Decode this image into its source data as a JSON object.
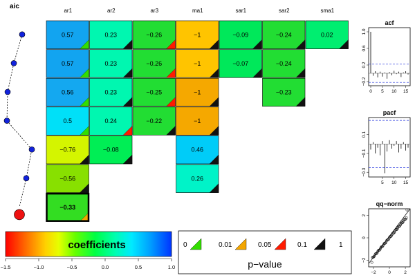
{
  "aic_panel": {
    "title": "aic"
  },
  "chart_data": {
    "type": "heatmap",
    "columns": [
      "ar1",
      "ar2",
      "ar3",
      "ma1",
      "sar1",
      "sar2",
      "sma1"
    ],
    "rows": [
      {
        "aic_rank": 4,
        "cells": [
          {
            "col": "ar1",
            "value": "0.57",
            "fill": "#12a4f0",
            "tri": "#33dd00"
          },
          {
            "col": "ar2",
            "value": "0.23",
            "fill": "#00f7b0",
            "tri": "#111111"
          },
          {
            "col": "ar3",
            "value": "−0.26",
            "fill": "#22dd33",
            "tri": "#ff1a00"
          },
          {
            "col": "ma1",
            "value": "−1",
            "fill": "#ffc400",
            "tri": "#111111"
          },
          {
            "col": "sar1",
            "value": "−0.09",
            "fill": "#00e85a",
            "tri": "#111111"
          },
          {
            "col": "sar2",
            "value": "−0.24",
            "fill": "#22dd33",
            "tri": "#111111"
          },
          {
            "col": "sma1",
            "value": "0.02",
            "fill": "#00ee70",
            "tri": "#111111"
          }
        ]
      },
      {
        "aic_rank": 3,
        "cells": [
          {
            "col": "ar1",
            "value": "0.57",
            "fill": "#12a4f0",
            "tri": "#33dd00"
          },
          {
            "col": "ar2",
            "value": "0.23",
            "fill": "#00f7b0",
            "tri": "#111111"
          },
          {
            "col": "ar3",
            "value": "−0.26",
            "fill": "#22dd33",
            "tri": "#ff1a00"
          },
          {
            "col": "ma1",
            "value": "−1",
            "fill": "#ffc400",
            "tri": "#111111"
          },
          {
            "col": "sar1",
            "value": "−0.07",
            "fill": "#00e85a",
            "tri": "#111111"
          },
          {
            "col": "sar2",
            "value": "−0.24",
            "fill": "#22dd33",
            "tri": "#111111"
          }
        ]
      },
      {
        "aic_rank": 2,
        "cells": [
          {
            "col": "ar1",
            "value": "0.56",
            "fill": "#14a8f0",
            "tri": "#33dd00"
          },
          {
            "col": "ar2",
            "value": "0.23",
            "fill": "#00f7b0",
            "tri": "#111111"
          },
          {
            "col": "ar3",
            "value": "−0.25",
            "fill": "#22dd33",
            "tri": "#ff1a00"
          },
          {
            "col": "ma1",
            "value": "−1",
            "fill": "#f5a800",
            "tri": "#111111"
          },
          {
            "col": "sar2",
            "value": "−0.23",
            "fill": "#22dd33",
            "tri": "#111111"
          }
        ]
      },
      {
        "aic_rank": 1,
        "cells": [
          {
            "col": "ar1",
            "value": "0.5",
            "fill": "#00e0f8",
            "tri": "#33dd00"
          },
          {
            "col": "ar2",
            "value": "0.24",
            "fill": "#00f7b0",
            "tri": "#ff1a00"
          },
          {
            "col": "ar3",
            "value": "−0.22",
            "fill": "#22dd33",
            "tri": "#111111"
          },
          {
            "col": "ma1",
            "value": "−1",
            "fill": "#f5a800",
            "tri": "#111111"
          }
        ]
      },
      {
        "aic_rank": 5,
        "cells": [
          {
            "col": "ar1",
            "value": "−0.76",
            "fill": "#d4f500",
            "tri": "#111111"
          },
          {
            "col": "ar2",
            "value": "−0.08",
            "fill": "#00ee55",
            "tri": "#111111"
          },
          {
            "col": "ma1",
            "value": "0.46",
            "fill": "#00ccf8",
            "tri": "#111111"
          }
        ]
      },
      {
        "aic_rank": 6,
        "cells": [
          {
            "col": "ar1",
            "value": "−0.56",
            "fill": "#88e000",
            "tri": "#111111"
          },
          {
            "col": "ma1",
            "value": "0.26",
            "fill": "#00f3c8",
            "tri": "#111111"
          }
        ]
      },
      {
        "aic_rank": 7,
        "selected": true,
        "cells": [
          {
            "col": "ar1",
            "value": "−0.33",
            "fill": "#33dd22",
            "tri": "#f2a500"
          }
        ]
      }
    ],
    "colorbar": {
      "label": "coefficients",
      "ticks": [
        "−1.5",
        "−1.0",
        "−0.5",
        "0.0",
        "0.5",
        "1.0"
      ],
      "range": [
        -1.5,
        1.0
      ]
    },
    "pvalue_legend": {
      "label": "p−value",
      "ticks": [
        "0",
        "0.01",
        "0.05",
        "0.1",
        "1"
      ],
      "colors": [
        "#33dd00",
        "#f2a500",
        "#ff1a00",
        "#111111"
      ]
    }
  },
  "acf_panel": {
    "title": "acf",
    "y_ticks": [
      "−0.2",
      "0.2",
      "0.6",
      "1.0"
    ],
    "x_ticks": [
      "0",
      "5",
      "10",
      "15"
    ],
    "ci": 0.22,
    "lags": [
      1.0,
      -0.06,
      0.05,
      -0.1,
      0.04,
      -0.08,
      0.02,
      -0.13,
      0.03,
      -0.05,
      0.06,
      -0.02,
      0.04,
      -0.09,
      0.02,
      0.05,
      -0.03
    ]
  },
  "pacf_panel": {
    "title": "pacf",
    "y_ticks": [
      "−0.3",
      "−0.1",
      "0.1"
    ],
    "x_ticks": [
      "5",
      "10",
      "15"
    ],
    "ci": 0.25,
    "lags": [
      -0.06,
      0.02,
      -0.1,
      -0.04,
      -0.12,
      0.03,
      -0.31,
      -0.08,
      0.04,
      -0.05,
      -0.02,
      0.03,
      -0.09,
      -0.05,
      0.02,
      -0.07,
      -0.04
    ]
  },
  "qq_panel": {
    "title": "qq−norm",
    "y_ticks": [
      "−2",
      "0",
      "2"
    ],
    "x_ticks": [
      "−2",
      "0",
      "2"
    ]
  }
}
